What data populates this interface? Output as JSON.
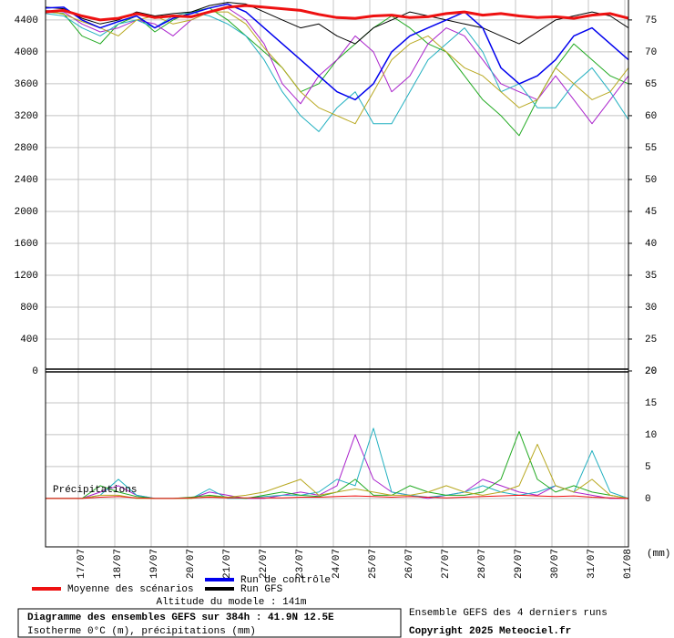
{
  "chart_data": [
    {
      "type": "line",
      "title": "Diagramme des ensembles GEFS sur 384h : 41.9N 12.5E",
      "subtitle": "Isotherme 0°C (m), précipitations (mm)",
      "annotations": [
        "Altitude du modele : 141m",
        "Ensemble GEFS des 4 derniers runs",
        "Copyright 2025 Meteociel.fr"
      ],
      "x": [
        0,
        12,
        24,
        36,
        48,
        60,
        72,
        84,
        96,
        108,
        120,
        132,
        144,
        156,
        168,
        180,
        192,
        204,
        216,
        228,
        240,
        252,
        264,
        276,
        288,
        300,
        312,
        324,
        336,
        348,
        360,
        372,
        384
      ],
      "xlim": [
        0,
        384
      ],
      "ylim": [
        0,
        4650
      ],
      "yticks": [
        0,
        400,
        800,
        1200,
        1600,
        2000,
        2400,
        2800,
        3200,
        3600,
        4000,
        4400
      ],
      "y2lim": [
        20,
        78.125
      ],
      "y2ticks": [
        20,
        25,
        30,
        35,
        40,
        45,
        50,
        55,
        60,
        65,
        70,
        75
      ],
      "grid": true,
      "series": [
        {
          "color": "#22aa22",
          "values": [
            4500,
            4480,
            4200,
            4100,
            4350,
            4450,
            4250,
            4400,
            4500,
            4550,
            4400,
            4200,
            4000,
            3800,
            3500,
            3600,
            3900,
            4100,
            4300,
            4450,
            4300,
            4100,
            4000,
            3700,
            3400,
            3200,
            2950,
            3400,
            3800,
            4100,
            3900,
            3700,
            3600
          ]
        },
        {
          "color": "#aa22cc",
          "values": [
            4520,
            4500,
            4350,
            4250,
            4300,
            4400,
            4350,
            4200,
            4400,
            4500,
            4550,
            4400,
            4100,
            3600,
            3350,
            3700,
            3900,
            4200,
            4000,
            3500,
            3700,
            4100,
            4300,
            4200,
            3900,
            3600,
            3500,
            3400,
            3700,
            3400,
            3100,
            3400,
            3700
          ]
        },
        {
          "color": "#22b0c0",
          "values": [
            4480,
            4450,
            4300,
            4200,
            4350,
            4400,
            4300,
            4450,
            4500,
            4450,
            4350,
            4200,
            3900,
            3500,
            3200,
            3000,
            3300,
            3500,
            3100,
            3100,
            3500,
            3900,
            4100,
            4300,
            4000,
            3500,
            3600,
            3300,
            3300,
            3600,
            3800,
            3500,
            3150
          ]
        },
        {
          "color": "#b8a820",
          "values": [
            4520,
            4470,
            4380,
            4300,
            4200,
            4400,
            4450,
            4350,
            4400,
            4500,
            4500,
            4350,
            4050,
            3800,
            3500,
            3300,
            3200,
            3100,
            3500,
            3900,
            4100,
            4200,
            4000,
            3800,
            3700,
            3500,
            3300,
            3400,
            3800,
            3600,
            3400,
            3500,
            3800
          ]
        },
        {
          "name": "Run GFS",
          "color": "#000000",
          "values": [
            4560,
            4540,
            4420,
            4350,
            4400,
            4500,
            4450,
            4480,
            4500,
            4580,
            4620,
            4600,
            4500,
            4400,
            4300,
            4350,
            4200,
            4100,
            4300,
            4400,
            4500,
            4450,
            4400,
            4350,
            4300,
            4200,
            4100,
            4250,
            4400,
            4450,
            4500,
            4450,
            4300
          ]
        },
        {
          "name": "Run de contrôle",
          "color": "#0000ee",
          "values": [
            4550,
            4560,
            4400,
            4300,
            4380,
            4450,
            4300,
            4420,
            4480,
            4550,
            4600,
            4500,
            4300,
            4100,
            3900,
            3700,
            3500,
            3400,
            3600,
            4000,
            4200,
            4300,
            4400,
            4500,
            4300,
            3800,
            3600,
            3700,
            3900,
            4200,
            4300,
            4100,
            3900
          ]
        },
        {
          "name": "Moyenne des scénarios",
          "color": "#ee1111",
          "values": [
            4500,
            4520,
            4450,
            4400,
            4420,
            4480,
            4430,
            4450,
            4440,
            4500,
            4560,
            4580,
            4560,
            4540,
            4520,
            4470,
            4430,
            4420,
            4450,
            4460,
            4430,
            4440,
            4480,
            4500,
            4460,
            4480,
            4450,
            4430,
            4440,
            4420,
            4460,
            4480,
            4420
          ]
        }
      ]
    },
    {
      "type": "line",
      "title": "Précipitations",
      "y_label": "(mm)",
      "x": [
        0,
        12,
        24,
        36,
        48,
        60,
        72,
        84,
        96,
        108,
        120,
        132,
        144,
        156,
        168,
        180,
        192,
        204,
        216,
        228,
        240,
        252,
        264,
        276,
        288,
        300,
        312,
        324,
        336,
        348,
        360,
        372,
        384
      ],
      "xlim": [
        0,
        384
      ],
      "xticks": [
        {
          "value": 21.6,
          "label": "17/07"
        },
        {
          "value": 45.6,
          "label": "18/07"
        },
        {
          "value": 69.6,
          "label": "19/07"
        },
        {
          "value": 93.6,
          "label": "20/07"
        },
        {
          "value": 117.6,
          "label": "21/07"
        },
        {
          "value": 141.6,
          "label": "22/07"
        },
        {
          "value": 165.6,
          "label": "23/07"
        },
        {
          "value": 189.6,
          "label": "24/07"
        },
        {
          "value": 213.6,
          "label": "25/07"
        },
        {
          "value": 237.6,
          "label": "26/07"
        },
        {
          "value": 261.6,
          "label": "27/07"
        },
        {
          "value": 285.6,
          "label": "28/07"
        },
        {
          "value": 309.6,
          "label": "29/07"
        },
        {
          "value": 333.6,
          "label": "30/07"
        },
        {
          "value": 357.6,
          "label": "31/07"
        },
        {
          "value": 381.6,
          "label": "01/08"
        }
      ],
      "ylim": [
        -7.6,
        20
      ],
      "yticks": [
        0,
        5,
        10,
        15,
        20
      ],
      "grid": true,
      "series": [
        {
          "color": "#aa22cc",
          "values": [
            0,
            0,
            0,
            1,
            2,
            0.5,
            0,
            0,
            0,
            1,
            0.5,
            0,
            0,
            0.5,
            1,
            0.5,
            2,
            10,
            3,
            1,
            0.5,
            0,
            0.5,
            1,
            3,
            2,
            1,
            0.5,
            2,
            1,
            0.5,
            0,
            0
          ]
        },
        {
          "color": "#22b0c0",
          "values": [
            0,
            0,
            0,
            0.5,
            3,
            0.5,
            0,
            0,
            0,
            1.5,
            0,
            0,
            0.3,
            0.5,
            0.5,
            1,
            3,
            2,
            11,
            1,
            0.5,
            0.2,
            0.5,
            1,
            2,
            1,
            0.5,
            1,
            2,
            1,
            7.5,
            1,
            0
          ]
        },
        {
          "color": "#22aa22",
          "values": [
            0,
            0,
            0,
            2,
            1,
            0.3,
            0,
            0,
            0.2,
            0.5,
            0.2,
            0,
            0.5,
            1,
            0.5,
            0.3,
            1,
            3,
            0.5,
            0.5,
            2,
            1,
            0.5,
            0.5,
            1,
            3,
            10.5,
            3,
            1,
            2,
            1,
            0.5,
            0
          ]
        },
        {
          "color": "#b8a820",
          "values": [
            0,
            0,
            0,
            0.5,
            0.5,
            0,
            0,
            0,
            0,
            0.3,
            0.2,
            0.5,
            1,
            2,
            3,
            0.5,
            1,
            1.5,
            1,
            0.5,
            0.5,
            1,
            2,
            1,
            0.5,
            1,
            2,
            8.5,
            2,
            1,
            3,
            0.5,
            0
          ]
        },
        {
          "color": "#ee1111",
          "values": [
            0,
            0,
            0,
            0.2,
            0.3,
            0.1,
            0,
            0,
            0.1,
            0.2,
            0.1,
            0.1,
            0.1,
            0.1,
            0.2,
            0.2,
            0.3,
            0.4,
            0.3,
            0.2,
            0.3,
            0.2,
            0.1,
            0.2,
            0.3,
            0.4,
            0.5,
            0.4,
            0.3,
            0.4,
            0.2,
            0.1,
            0
          ]
        }
      ]
    }
  ]
}
